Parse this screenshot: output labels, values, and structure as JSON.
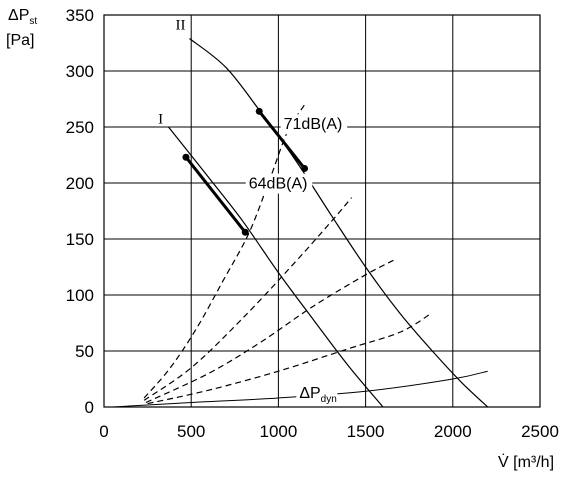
{
  "chart_data": {
    "type": "line",
    "title": "",
    "xlabel": "V̇ [m³/h]",
    "ylabel_main": "ΔP",
    "ylabel_sub": "st",
    "ylabel_unit": "[Pa]",
    "xlim": [
      0,
      2500
    ],
    "ylim": [
      0,
      350
    ],
    "x_ticks": [
      0,
      500,
      1000,
      1500,
      2000,
      2500
    ],
    "y_ticks": [
      0,
      50,
      100,
      150,
      200,
      250,
      300,
      350
    ],
    "grid": true,
    "series": [
      {
        "name": "I",
        "style": "solid",
        "points": [
          [
            370,
            250
          ],
          [
            600,
            205
          ],
          [
            800,
            165
          ],
          [
            1000,
            120
          ],
          [
            1200,
            78
          ],
          [
            1400,
            37
          ],
          [
            1600,
            0
          ]
        ]
      },
      {
        "name": "II",
        "style": "solid",
        "points": [
          [
            490,
            329
          ],
          [
            700,
            303
          ],
          [
            900,
            263
          ],
          [
            1100,
            220
          ],
          [
            1300,
            172
          ],
          [
            1500,
            125
          ],
          [
            1700,
            83
          ],
          [
            1900,
            47
          ],
          [
            2050,
            22
          ],
          [
            2200,
            0
          ]
        ]
      },
      {
        "name": "",
        "style": "dashed",
        "points": [
          [
            230,
            8
          ],
          [
            380,
            35
          ],
          [
            530,
            70
          ],
          [
            680,
            112
          ],
          [
            830,
            155
          ],
          [
            950,
            203
          ],
          [
            1050,
            245
          ],
          [
            1150,
            270
          ]
        ]
      },
      {
        "name": "",
        "style": "dashed",
        "points": [
          [
            230,
            6
          ],
          [
            500,
            35
          ],
          [
            800,
            80
          ],
          [
            1100,
            130
          ],
          [
            1300,
            165
          ],
          [
            1420,
            187
          ]
        ]
      },
      {
        "name": "",
        "style": "dashed",
        "points": [
          [
            240,
            4
          ],
          [
            600,
            30
          ],
          [
            900,
            58
          ],
          [
            1200,
            90
          ],
          [
            1500,
            118
          ],
          [
            1660,
            131
          ]
        ]
      },
      {
        "name": "",
        "style": "dashed",
        "points": [
          [
            250,
            3
          ],
          [
            600,
            15
          ],
          [
            1000,
            32
          ],
          [
            1400,
            52
          ],
          [
            1700,
            67
          ],
          [
            1880,
            84
          ]
        ]
      },
      {
        "name": "",
        "style": "solid-thin",
        "points": [
          [
            50,
            0
          ],
          [
            500,
            4
          ],
          [
            1000,
            8
          ],
          [
            1500,
            14
          ],
          [
            2000,
            25
          ],
          [
            2200,
            32
          ]
        ]
      }
    ],
    "operating_ranges": [
      {
        "name": "I",
        "points": [
          [
            470,
            223
          ],
          [
            810,
            156
          ]
        ]
      },
      {
        "name": "II",
        "points": [
          [
            890,
            264
          ],
          [
            1150,
            213
          ]
        ]
      }
    ],
    "annotations": [
      {
        "text": "I",
        "x": 310,
        "y": 253,
        "font": "serif"
      },
      {
        "text": "II",
        "x": 410,
        "y": 337,
        "font": "serif"
      },
      {
        "text": "64dB(A)",
        "x": 830,
        "y": 195
      },
      {
        "text": "71dB(A)",
        "x": 1030,
        "y": 248
      },
      {
        "text": "ΔP",
        "sub": "dyn",
        "x": 1120,
        "y": 8
      }
    ]
  }
}
